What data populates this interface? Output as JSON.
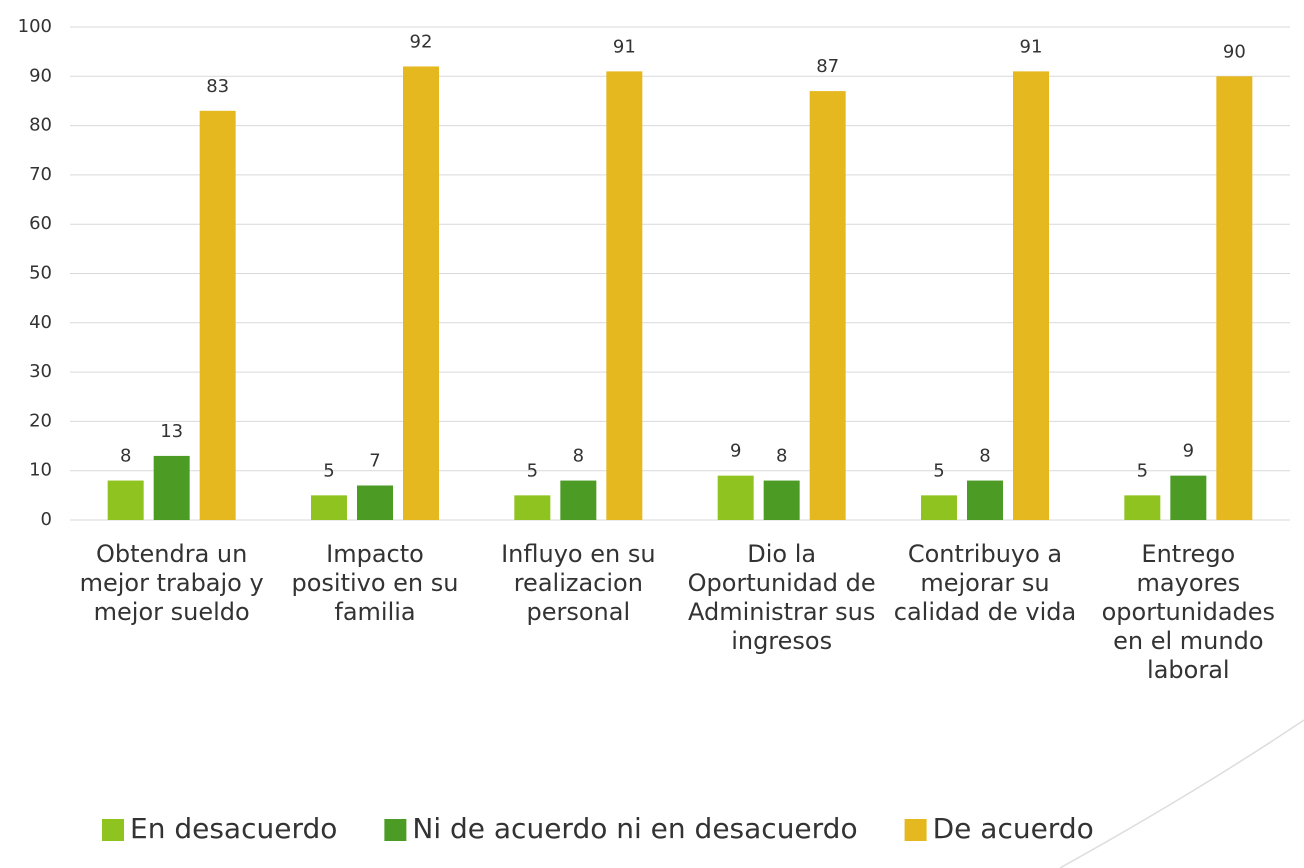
{
  "chart_data": {
    "type": "bar",
    "categories": [
      "Obtendra un mejor trabajo y mejor sueldo",
      "Impacto positivo en su familia",
      "Influyo en su realizacion personal",
      "Dio la Oportunidad de Administrar sus ingresos",
      "Contribuyo a mejorar su calidad de vida",
      "Entrego mayores oportunidades en el mundo laboral"
    ],
    "series": [
      {
        "name": "En desacuerdo",
        "color": "#8fc31f",
        "values": [
          8,
          5,
          5,
          9,
          5,
          5
        ]
      },
      {
        "name": "Ni de acuerdo ni en desacuerdo",
        "color": "#4c9b25",
        "values": [
          13,
          7,
          8,
          8,
          8,
          9
        ]
      },
      {
        "name": "De acuerdo",
        "color": "#e6b820",
        "values": [
          83,
          92,
          91,
          87,
          91,
          90
        ]
      }
    ],
    "ylim": [
      0,
      100
    ],
    "yticks": [
      0,
      10,
      20,
      30,
      40,
      50,
      60,
      70,
      80,
      90,
      100
    ],
    "grid": true,
    "legend": "bottom"
  }
}
